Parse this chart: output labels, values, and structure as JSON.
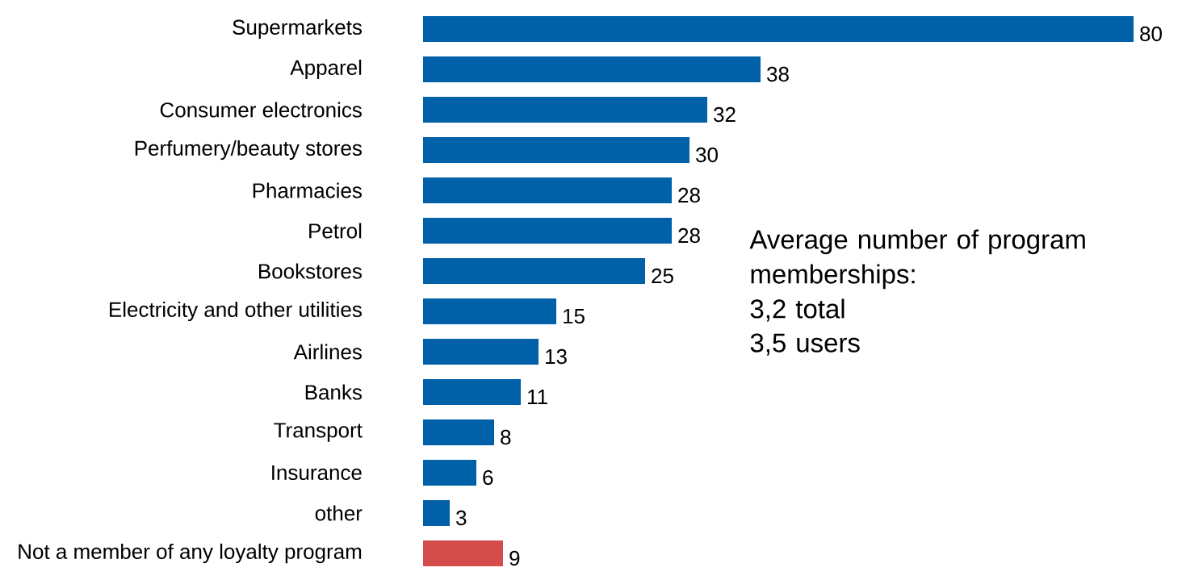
{
  "chart_data": {
    "type": "bar",
    "orientation": "horizontal",
    "categories": [
      "Supermarkets",
      "Apparel",
      "Consumer electronics",
      "Perfumery/beauty stores",
      "Pharmacies",
      "Petrol",
      "Bookstores",
      "Electricity and other utilities",
      "Airlines",
      "Banks",
      "Transport",
      "Insurance",
      "other",
      "Not a member of any loyalty program"
    ],
    "values": [
      80,
      38,
      32,
      30,
      28,
      28,
      25,
      15,
      13,
      11,
      8,
      6,
      3,
      9
    ],
    "colors": [
      "#0060a8",
      "#0060a8",
      "#0060a8",
      "#0060a8",
      "#0060a8",
      "#0060a8",
      "#0060a8",
      "#0060a8",
      "#0060a8",
      "#0060a8",
      "#0060a8",
      "#0060a8",
      "#0060a8",
      "#d44c4c"
    ],
    "data_labels": true,
    "annotations": [
      "Average number of program memberships:",
      "3,2 total",
      "3,5 users"
    ]
  }
}
